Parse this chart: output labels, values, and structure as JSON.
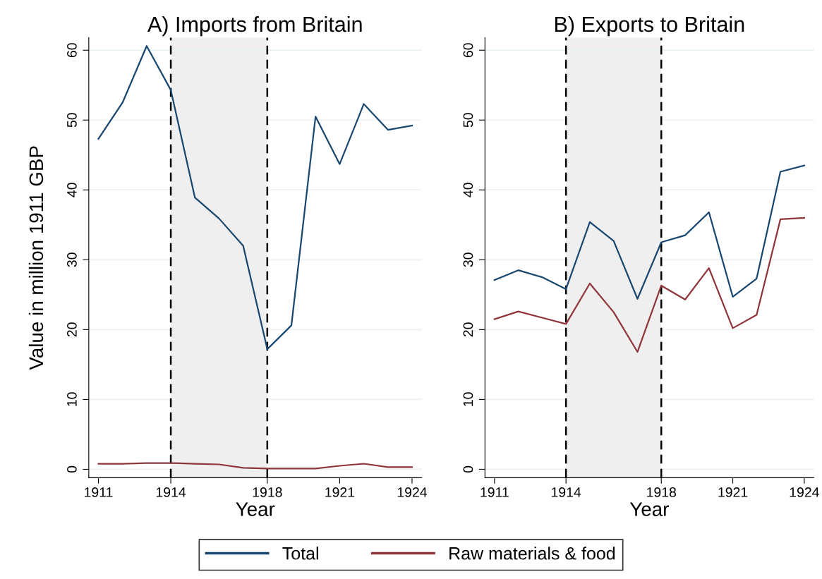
{
  "chart_data": [
    {
      "type": "line",
      "title": "A) Imports from Britain",
      "xlabel": "Year",
      "ylabel": "Value in million 1911 GBP",
      "x": [
        1911,
        1912,
        1913,
        1914,
        1915,
        1916,
        1917,
        1918,
        1919,
        1920,
        1921,
        1922,
        1923,
        1924
      ],
      "series": [
        {
          "name": "Total",
          "color": "#1a476f",
          "values": [
            47.3,
            52.5,
            60.6,
            54.3,
            38.9,
            35.9,
            32.0,
            17.2,
            20.6,
            50.5,
            43.7,
            52.3,
            48.6,
            49.2
          ]
        },
        {
          "name": "Raw materials & food",
          "color": "#90353b",
          "values": [
            0.8,
            0.8,
            0.9,
            0.9,
            0.8,
            0.7,
            0.2,
            0.1,
            0.1,
            0.1,
            0.5,
            0.8,
            0.3,
            0.3
          ]
        }
      ],
      "xlim": [
        1910.6,
        1924.4
      ],
      "xticks": [
        1911,
        1914,
        1918,
        1921,
        1924
      ],
      "ylim": [
        -1.2,
        61.8
      ],
      "yticks": [
        0,
        10,
        20,
        30,
        40,
        50,
        60
      ],
      "bands": [
        {
          "axis": "x",
          "from": 1914,
          "to": 1918,
          "color": "#efefef"
        }
      ],
      "ref_lines": [
        {
          "axis": "x",
          "value": 1914,
          "color": "#000000",
          "line_style": "dashed"
        },
        {
          "axis": "x",
          "value": 1918,
          "color": "#000000",
          "line_style": "dashed"
        }
      ],
      "grid": "y",
      "legend": "bottom",
      "line_style": "solid",
      "marker": "none"
    },
    {
      "type": "line",
      "title": "B) Exports to Britain",
      "xlabel": "Year",
      "x": [
        1911,
        1912,
        1913,
        1914,
        1915,
        1916,
        1917,
        1918,
        1919,
        1920,
        1921,
        1922,
        1923,
        1924
      ],
      "series": [
        {
          "name": "Total",
          "color": "#1a476f",
          "values": [
            27.1,
            28.5,
            27.5,
            25.8,
            35.4,
            32.7,
            24.4,
            32.5,
            33.5,
            36.8,
            24.7,
            27.3,
            42.6,
            43.5
          ]
        },
        {
          "name": "Raw materials & food",
          "color": "#90353b",
          "values": [
            21.5,
            22.6,
            21.7,
            20.8,
            26.6,
            22.5,
            16.8,
            26.3,
            24.3,
            28.8,
            20.2,
            22.1,
            35.8,
            36.0
          ]
        }
      ],
      "xlim": [
        1910.6,
        1924.4
      ],
      "xticks": [
        1911,
        1914,
        1918,
        1921,
        1924
      ],
      "ylim": [
        -1.2,
        61.8
      ],
      "yticks": [
        0,
        10,
        20,
        30,
        40,
        50,
        60
      ],
      "bands": [
        {
          "axis": "x",
          "from": 1914,
          "to": 1918,
          "color": "#efefef"
        }
      ],
      "ref_lines": [
        {
          "axis": "x",
          "value": 1914,
          "color": "#000000",
          "line_style": "dashed"
        },
        {
          "axis": "x",
          "value": 1918,
          "color": "#000000",
          "line_style": "dashed"
        }
      ],
      "grid": "y",
      "legend": "bottom",
      "line_style": "solid",
      "marker": "none"
    }
  ]
}
